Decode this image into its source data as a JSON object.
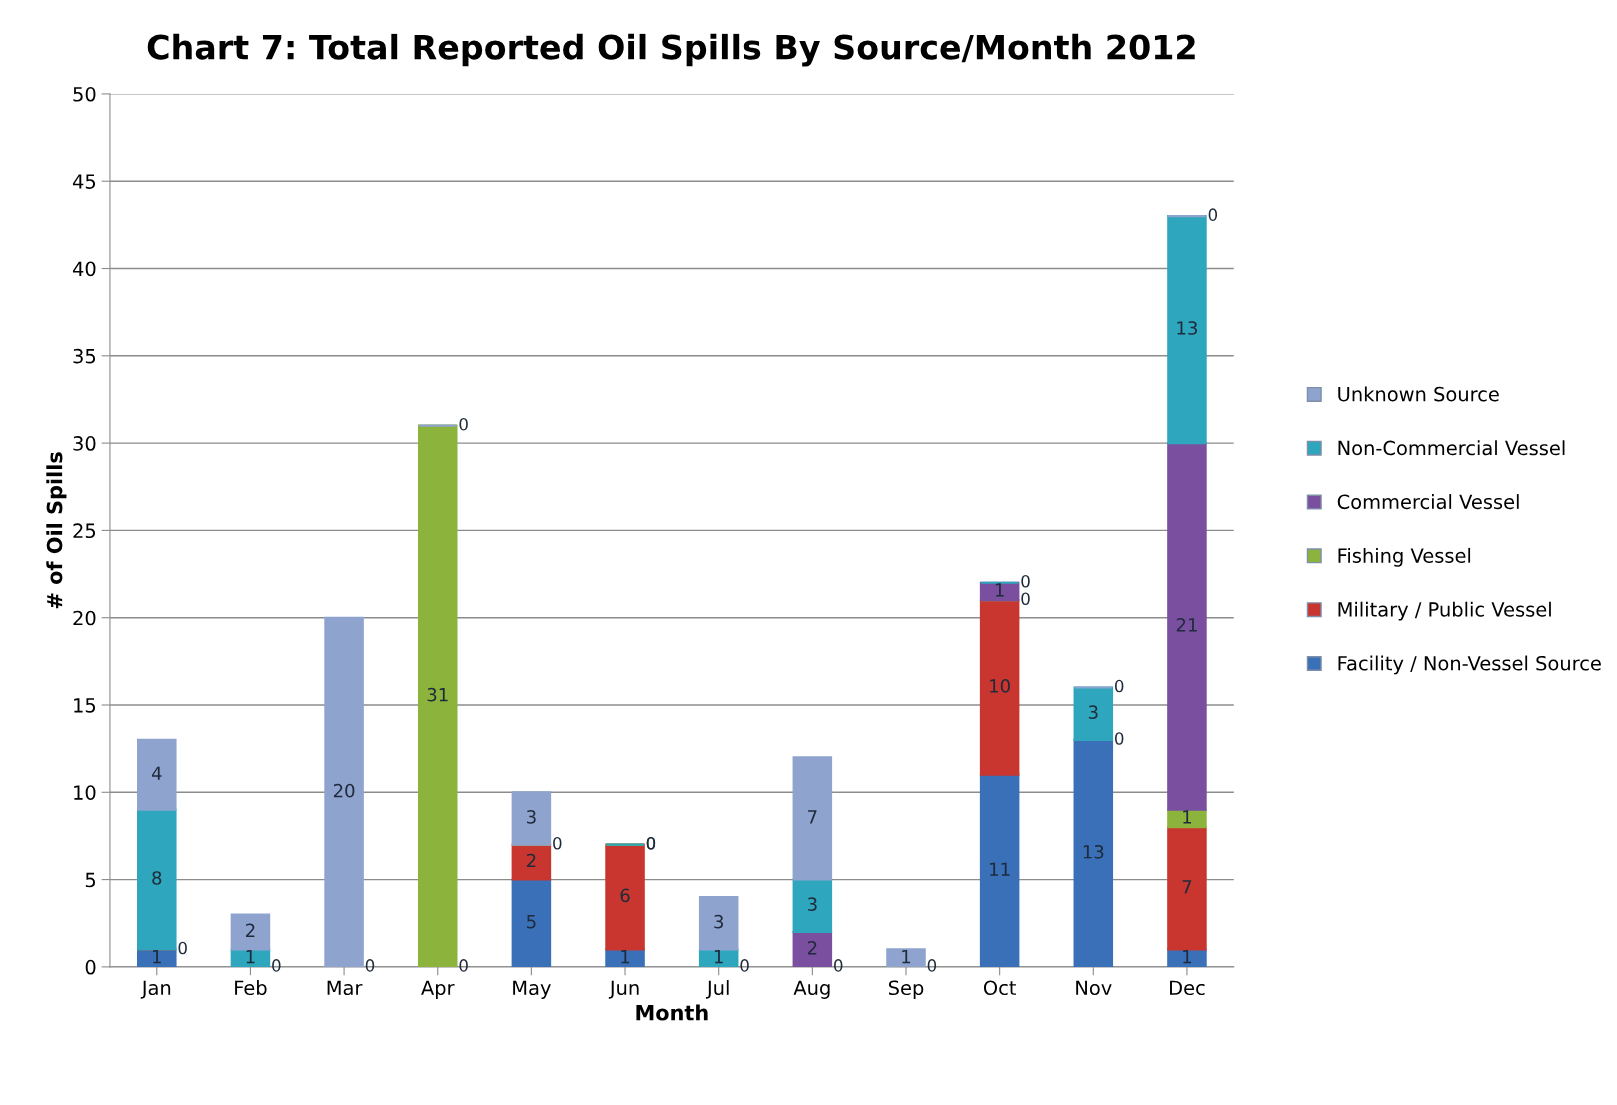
{
  "chart_data": {
    "type": "bar",
    "stacked": true,
    "title": "Chart 7: Total Reported Oil Spills By Source/Month 2012",
    "xlabel": "Month",
    "ylabel": "# of Oil Spills",
    "categories": [
      "Jan",
      "Feb",
      "Mar",
      "Apr",
      "May",
      "Jun",
      "Jul",
      "Aug",
      "Sep",
      "Oct",
      "Nov",
      "Dec"
    ],
    "series": [
      {
        "name": "Facility / Non-Vessel Source",
        "color": "#3a70b8",
        "values": [
          1,
          0,
          0,
          0,
          5,
          1,
          0,
          0,
          0,
          11,
          13,
          1
        ],
        "value_labels": [
          "1",
          "0",
          "0",
          "0",
          "5",
          "1",
          "0",
          "0",
          "0",
          "11",
          "13",
          "1"
        ]
      },
      {
        "name": "Military / Public Vessel",
        "color": "#c8362f",
        "values": [
          0,
          null,
          null,
          null,
          2,
          6,
          null,
          null,
          null,
          10,
          null,
          7
        ],
        "value_labels": [
          "0",
          null,
          null,
          null,
          "2",
          "6",
          null,
          null,
          null,
          "10",
          null,
          "7"
        ]
      },
      {
        "name": "Fishing Vessel",
        "color": "#8cb43c",
        "values": [
          null,
          null,
          null,
          31,
          0,
          0,
          null,
          null,
          null,
          0,
          null,
          1
        ],
        "value_labels": [
          null,
          null,
          null,
          "31",
          "0",
          "0",
          null,
          null,
          null,
          "0",
          null,
          "1"
        ]
      },
      {
        "name": "Commercial Vessel",
        "color": "#7b4fa0",
        "values": [
          null,
          null,
          null,
          null,
          null,
          null,
          null,
          2,
          null,
          1,
          0,
          21
        ],
        "value_labels": [
          null,
          null,
          null,
          null,
          null,
          null,
          null,
          "2",
          null,
          "1",
          "0",
          "21"
        ]
      },
      {
        "name": "Non-Commercial Vessel",
        "color": "#2ea6bd",
        "values": [
          8,
          1,
          null,
          null,
          null,
          0,
          1,
          3,
          null,
          0,
          3,
          13
        ],
        "value_labels": [
          "8",
          "1",
          null,
          null,
          null,
          "0",
          "1",
          "3",
          null,
          "0",
          "3",
          "13"
        ]
      },
      {
        "name": "Unknown Source",
        "color": "#8fa3cf",
        "values": [
          4,
          2,
          20,
          0,
          3,
          null,
          3,
          7,
          1,
          null,
          0,
          0
        ],
        "value_labels": [
          "4",
          "2",
          "20",
          "0",
          "3",
          null,
          "3",
          "7",
          "1",
          null,
          "0",
          "0"
        ]
      }
    ],
    "ylim": [
      0,
      50
    ],
    "yticks": [
      0,
      5,
      10,
      15,
      20,
      25,
      30,
      35,
      40,
      45,
      50
    ],
    "grid": "y",
    "legend": "right"
  }
}
